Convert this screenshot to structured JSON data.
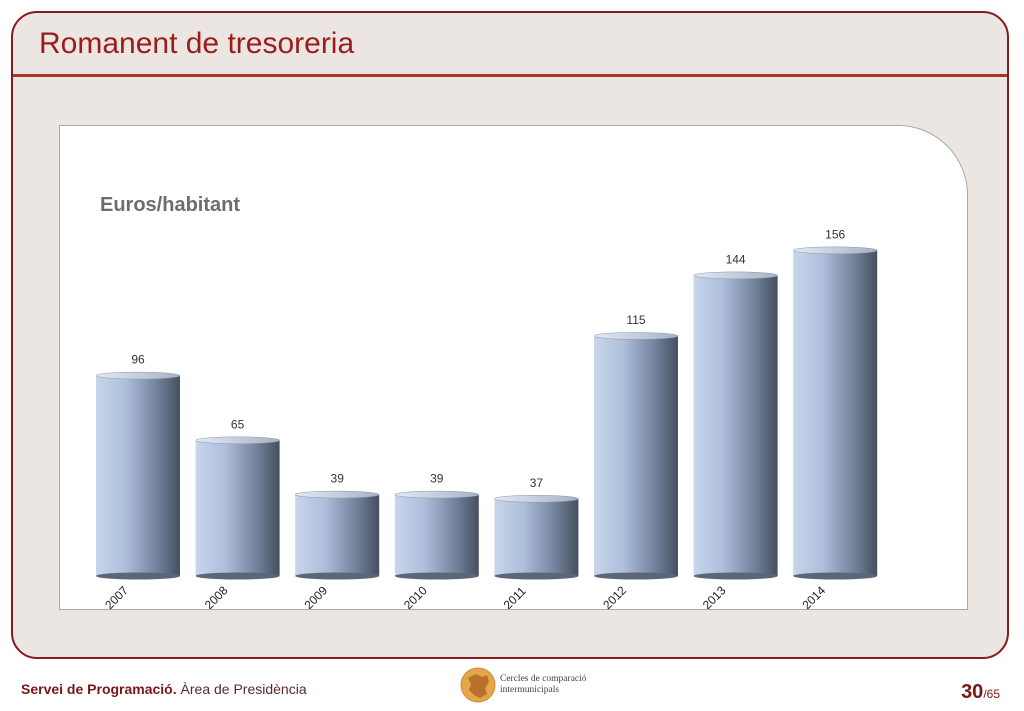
{
  "slide": {
    "title": "Romanent de tresoreria"
  },
  "footer": {
    "org_bold": "Servei de Programació.",
    "org_rest": " Àrea de Presidència",
    "logo_line1": "Cercles de comparació",
    "logo_line2": "intermunicipals",
    "page_current": "30",
    "page_total": "/65"
  },
  "colors": {
    "accent": "#9e1b1b",
    "frame_bg": "#ebe6e2",
    "bar_light": "#c6d4ea",
    "bar_dark": "#4a5565"
  },
  "chart_data": {
    "type": "bar",
    "title": "Euros/habitant",
    "categories": [
      "2007",
      "2008",
      "2009",
      "2010",
      "2011",
      "2012",
      "2013",
      "2014"
    ],
    "values": [
      96,
      65,
      39,
      39,
      37,
      115,
      144,
      156
    ],
    "data_labels": [
      "96",
      "65",
      "39",
      "39",
      "37",
      "115",
      "144",
      "156"
    ],
    "xlabel": "",
    "ylabel": "",
    "ylim": [
      0,
      160
    ],
    "grid": false,
    "legend": "none",
    "bar_shape": "cylinder"
  }
}
